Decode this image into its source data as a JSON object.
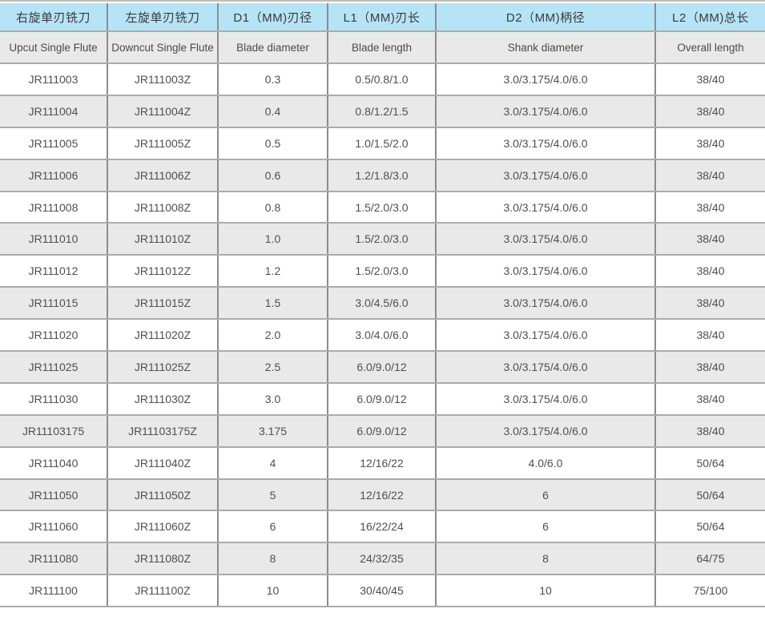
{
  "colors": {
    "header_blue": "#b6e4f7",
    "header_gray": "#e9e9e9",
    "row_alt_gray": "#e9e9e9",
    "row_white": "#ffffff",
    "border_vertical": "#8c8c8c",
    "border_horizontal": "#ababab",
    "text": "#4f4f4f"
  },
  "table": {
    "header_row_cn": [
      "右旋单刃铣刀",
      "左旋单刃铣刀",
      "D1（MM)刃径",
      "L1（MM)刃长",
      "D2（MM)柄径",
      "L2（MM)总长"
    ],
    "header_row_en": [
      "Upcut Single Flute",
      "Downcut Single Flute",
      "Blade diameter",
      "Blade length",
      "Shank diameter",
      "Overall length"
    ],
    "rows": [
      [
        "JR111003",
        "JR111003Z",
        "0.3",
        "0.5/0.8/1.0",
        "3.0/3.175/4.0/6.0",
        "38/40"
      ],
      [
        "JR111004",
        "JR111004Z",
        "0.4",
        "0.8/1.2/1.5",
        "3.0/3.175/4.0/6.0",
        "38/40"
      ],
      [
        "JR111005",
        "JR111005Z",
        "0.5",
        "1.0/1.5/2.0",
        "3.0/3.175/4.0/6.0",
        "38/40"
      ],
      [
        "JR111006",
        "JR111006Z",
        "0.6",
        "1.2/1.8/3.0",
        "3.0/3.175/4.0/6.0",
        "38/40"
      ],
      [
        "JR111008",
        "JR111008Z",
        "0.8",
        "1.5/2.0/3.0",
        "3.0/3.175/4.0/6.0",
        "38/40"
      ],
      [
        "JR111010",
        "JR111010Z",
        "1.0",
        "1.5/2.0/3.0",
        "3.0/3.175/4.0/6.0",
        "38/40"
      ],
      [
        "JR111012",
        "JR111012Z",
        "1.2",
        "1.5/2.0/3.0",
        "3.0/3.175/4.0/6.0",
        "38/40"
      ],
      [
        "JR111015",
        "JR111015Z",
        "1.5",
        "3.0/4.5/6.0",
        "3.0/3.175/4.0/6.0",
        "38/40"
      ],
      [
        "JR111020",
        "JR111020Z",
        "2.0",
        "3.0/4.0/6.0",
        "3.0/3.175/4.0/6.0",
        "38/40"
      ],
      [
        "JR111025",
        "JR111025Z",
        "2.5",
        "6.0/9.0/12",
        "3.0/3.175/4.0/6.0",
        "38/40"
      ],
      [
        "JR111030",
        "JR111030Z",
        "3.0",
        "6.0/9.0/12",
        "3.0/3.175/4.0/6.0",
        "38/40"
      ],
      [
        "JR11103175",
        "JR11103175Z",
        "3.175",
        "6.0/9.0/12",
        "3.0/3.175/4.0/6.0",
        "38/40"
      ],
      [
        "JR111040",
        "JR111040Z",
        "4",
        "12/16/22",
        "4.0/6.0",
        "50/64"
      ],
      [
        "JR111050",
        "JR111050Z",
        "5",
        "12/16/22",
        "6",
        "50/64"
      ],
      [
        "JR111060",
        "JR111060Z",
        "6",
        "16/22/24",
        "6",
        "50/64"
      ],
      [
        "JR111080",
        "JR111080Z",
        "8",
        "24/32/35",
        "8",
        "64/75"
      ],
      [
        "JR111100",
        "JR111100Z",
        "10",
        "30/40/45",
        "10",
        "75/100"
      ]
    ]
  }
}
